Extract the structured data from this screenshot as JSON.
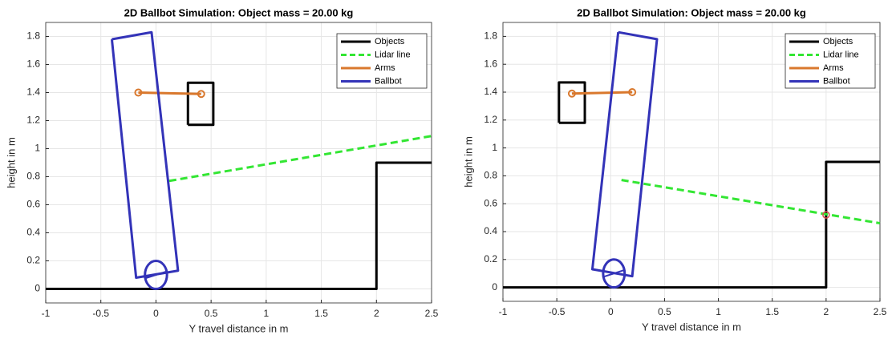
{
  "chart_data": [
    {
      "type": "line",
      "title": "2D Ballbot Simulation: Object mass =  20.00 kg",
      "xlabel": "Y travel distance in m",
      "ylabel": "height in m",
      "xlim": [
        -1,
        2.5
      ],
      "ylim": [
        -0.1,
        1.9
      ],
      "xticks": [
        -1,
        -0.5,
        0,
        0.5,
        1,
        1.5,
        2,
        2.5
      ],
      "yticks": [
        0,
        0.2,
        0.4,
        0.6,
        0.8,
        1,
        1.2,
        1.4,
        1.6,
        1.8
      ],
      "grid": true,
      "legend": "upper-right",
      "series": [
        {
          "name": "Objects",
          "color": "#000000",
          "x": [
            -1,
            2,
            2,
            2.5,
            null,
            0.29,
            0.52,
            0.52,
            0.29,
            0.29
          ],
          "values": [
            0,
            0,
            0.9,
            0.9,
            null,
            1.17,
            1.17,
            1.47,
            1.47,
            1.17
          ]
        },
        {
          "name": "Lidar line",
          "color": "#33e633",
          "linestyle": "--",
          "x": [
            0.12,
            2.5
          ],
          "values": [
            0.77,
            1.09
          ]
        },
        {
          "name": "Arms",
          "color": "#d9782d",
          "marker": "o",
          "x": [
            -0.16,
            0.41
          ],
          "values": [
            1.4,
            1.39
          ]
        },
        {
          "name": "Ballbot",
          "color": "#3333b8",
          "x": [
            -0.4,
            -0.04,
            0.2,
            -0.18,
            -0.4
          ],
          "values": [
            1.78,
            1.83,
            0.13,
            0.08,
            1.78
          ],
          "wheel_x": 0.0,
          "wheel_y": 0.1,
          "wheel_r": 0.1
        }
      ]
    },
    {
      "type": "line",
      "title": "2D Ballbot Simulation: Object mass =  20.00 kg",
      "xlabel": "Y travel distance in m",
      "ylabel": "height in m",
      "xlim": [
        -1,
        2.5
      ],
      "ylim": [
        -0.1,
        1.9
      ],
      "xticks": [
        -1,
        -0.5,
        0,
        0.5,
        1,
        1.5,
        2,
        2.5
      ],
      "yticks": [
        0,
        0.2,
        0.4,
        0.6,
        0.8,
        1,
        1.2,
        1.4,
        1.6,
        1.8
      ],
      "grid": true,
      "legend": "upper-right",
      "series": [
        {
          "name": "Objects",
          "color": "#000000",
          "x": [
            -1,
            2,
            2,
            2.5,
            null,
            -0.48,
            -0.24,
            -0.24,
            -0.48,
            -0.48
          ],
          "values": [
            0,
            0,
            0.9,
            0.9,
            null,
            1.18,
            1.18,
            1.47,
            1.47,
            1.18
          ]
        },
        {
          "name": "Lidar line",
          "color": "#33e633",
          "linestyle": "--",
          "x": [
            0.1,
            2.5
          ],
          "values": [
            0.77,
            0.46
          ],
          "hit_x": 2,
          "hit_y": 0.52,
          "hit_color": "#d9534f"
        },
        {
          "name": "Arms",
          "color": "#d9782d",
          "marker": "o",
          "x": [
            -0.36,
            0.2
          ],
          "values": [
            1.39,
            1.4
          ]
        },
        {
          "name": "Ballbot",
          "color": "#3333b8",
          "x": [
            0.07,
            0.43,
            0.2,
            -0.17,
            0.07
          ],
          "values": [
            1.83,
            1.78,
            0.08,
            0.13,
            1.83
          ],
          "wheel_x": 0.03,
          "wheel_y": 0.1,
          "wheel_r": 0.1
        }
      ]
    }
  ]
}
